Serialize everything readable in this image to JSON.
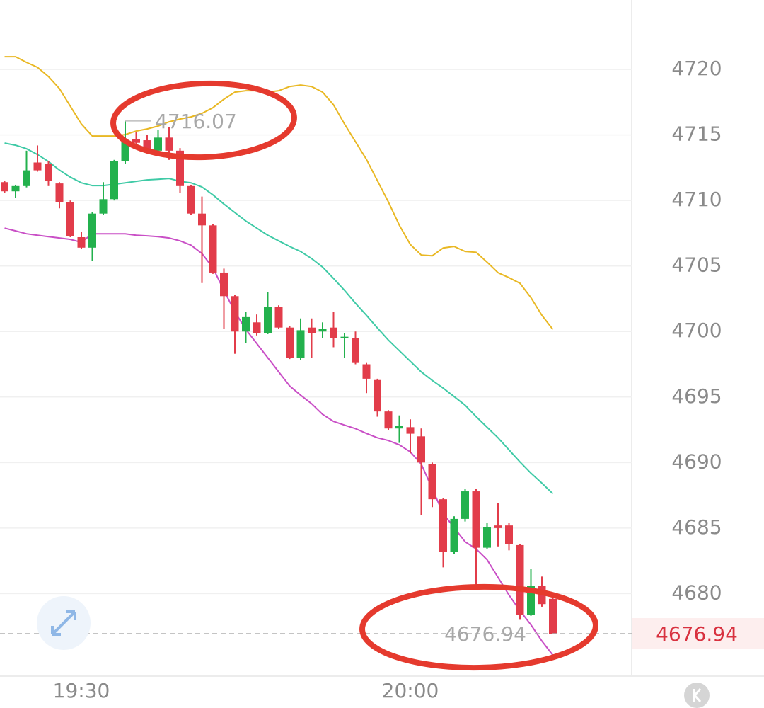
{
  "chart_data": {
    "type": "candlestick",
    "categories": [
      null,
      null,
      null,
      null,
      null,
      null,
      null,
      "19:30",
      null,
      null,
      null,
      null,
      null,
      null,
      null,
      null,
      null,
      null,
      null,
      null,
      null,
      null,
      null,
      null,
      null,
      null,
      null,
      null,
      null,
      null,
      null,
      null,
      null,
      null,
      null,
      null,
      null,
      "20:00",
      null,
      null,
      null,
      null,
      null,
      null,
      null,
      null,
      null,
      null,
      null,
      null,
      null
    ],
    "open": [
      4711.4,
      4710.7,
      4711.1,
      4712.9,
      4712.8,
      4711.3,
      4709.9,
      4707.2,
      4706.4,
      4709.0,
      4710.1,
      4713.0,
      4714.7,
      4714.6,
      4713.8,
      4714.8,
      4713.8,
      4711.1,
      4709.0,
      4708.1,
      4704.5,
      4702.7,
      4700.0,
      4700.7,
      4699.9,
      4701.9,
      4700.3,
      4698.0,
      4700.3,
      4700.0,
      4700.3,
      4699.5,
      4699.5,
      4697.5,
      4696.3,
      4693.9,
      4692.6,
      4692.7,
      4692.0,
      4689.9,
      4687.2,
      4683.2,
      4685.7,
      4687.8,
      4683.5,
      4685.2,
      4685.2,
      4683.7,
      4678.4,
      4680.6,
      4679.6
    ],
    "high": [
      4711.5,
      4711.2,
      4713.8,
      4714.2,
      4713.0,
      4711.4,
      4710.0,
      4707.6,
      4709.1,
      4711.4,
      4713.1,
      4716.07,
      4715.2,
      4715.0,
      4715.4,
      4715.6,
      4714.0,
      4711.2,
      4710.3,
      4708.2,
      4704.8,
      4702.8,
      4701.5,
      4701.3,
      4703.0,
      4702.0,
      4700.4,
      4701.0,
      4701.0,
      4700.7,
      4701.5,
      4699.9,
      4700.0,
      4697.6,
      4696.4,
      4694.0,
      4693.6,
      4693.3,
      4692.6,
      4690.0,
      4687.3,
      4685.9,
      4688.0,
      4688.0,
      4685.4,
      4686.9,
      4685.4,
      4683.8,
      4681.9,
      4681.3,
      4679.7
    ],
    "low": [
      4710.6,
      4710.2,
      4711.0,
      4712.2,
      4711.1,
      4709.4,
      4707.2,
      4706.3,
      4705.4,
      4708.9,
      4710.0,
      4712.8,
      4714.2,
      4713.7,
      4713.7,
      4713.1,
      4710.6,
      4708.9,
      4703.7,
      4704.4,
      4700.2,
      4698.3,
      4699.1,
      4699.7,
      4699.8,
      4700.2,
      4697.9,
      4697.8,
      4698.0,
      4699.5,
      4698.8,
      4698.0,
      4697.5,
      4695.3,
      4693.5,
      4692.5,
      4691.5,
      4690.7,
      4686.0,
      4686.6,
      4682.0,
      4683.0,
      4685.5,
      4680.7,
      4683.4,
      4683.6,
      4683.3,
      4678.0,
      4678.3,
      4679.0,
      4676.9
    ],
    "close": [
      4710.7,
      4711.1,
      4712.3,
      4712.3,
      4711.5,
      4709.9,
      4707.3,
      4706.4,
      4709.0,
      4710.1,
      4713.0,
      4714.5,
      4714.4,
      4713.9,
      4714.8,
      4713.8,
      4711.1,
      4709.0,
      4708.1,
      4704.5,
      4702.7,
      4700.0,
      4701.1,
      4699.9,
      4701.9,
      4700.3,
      4698.0,
      4700.1,
      4699.9,
      4700.2,
      4699.5,
      4699.6,
      4697.6,
      4696.4,
      4693.9,
      4692.6,
      4692.8,
      4692.2,
      4690.0,
      4687.2,
      4683.2,
      4685.7,
      4687.8,
      4683.5,
      4685.1,
      4685.0,
      4683.8,
      4678.4,
      4680.6,
      4679.2,
      4676.94
    ],
    "up_color": "#23b14d",
    "down_color": "#e23c4a",
    "series": [
      {
        "color": "#e9b824",
        "values": [
          4720.97,
          4720.97,
          4720.54,
          4720.16,
          4719.46,
          4718.54,
          4717.19,
          4715.84,
          4714.92,
          4714.92,
          4714.92,
          4715.03,
          4715.3,
          4715.46,
          4715.68,
          4716.0,
          4716.22,
          4716.38,
          4716.65,
          4717.08,
          4717.73,
          4718.27,
          4718.38,
          4718.38,
          4718.27,
          4718.38,
          4718.7,
          4718.81,
          4718.7,
          4718.27,
          4717.3,
          4715.84,
          4714.49,
          4713.14,
          4711.51,
          4709.89,
          4708.11,
          4706.65,
          4705.84,
          4705.78,
          4706.38,
          4706.49,
          4706.11,
          4706.05,
          4705.3,
          4704.49,
          4704.11,
          4703.68,
          4702.59,
          4701.24,
          4700.16
        ]
      },
      {
        "color": "#3fcaa6",
        "values": [
          4714.38,
          4714.22,
          4713.95,
          4713.51,
          4712.97,
          4712.32,
          4711.78,
          4711.35,
          4711.14,
          4711.14,
          4711.24,
          4711.35,
          4711.46,
          4711.57,
          4711.62,
          4711.68,
          4711.46,
          4711.35,
          4711.03,
          4710.43,
          4709.73,
          4709.08,
          4708.43,
          4707.89,
          4707.35,
          4706.92,
          4706.49,
          4706.11,
          4705.57,
          4704.92,
          4704.05,
          4703.14,
          4702.16,
          4701.24,
          4700.27,
          4699.35,
          4698.54,
          4697.73,
          4696.92,
          4696.27,
          4695.68,
          4695.03,
          4694.38,
          4693.51,
          4692.7,
          4691.89,
          4690.97,
          4690.05,
          4689.19,
          4688.43,
          4687.62
        ]
      },
      {
        "color": "#c94fc6",
        "values": [
          4707.89,
          4707.68,
          4707.46,
          4707.35,
          4707.24,
          4707.14,
          4707.03,
          4706.81,
          4707.46,
          4707.46,
          4707.46,
          4707.46,
          4707.35,
          4707.3,
          4707.24,
          4707.14,
          4706.92,
          4706.59,
          4705.95,
          4704.86,
          4703.14,
          4701.51,
          4700.16,
          4699.08,
          4698.0,
          4696.92,
          4695.84,
          4695.14,
          4694.49,
          4693.68,
          4693.14,
          4692.86,
          4692.59,
          4692.22,
          4691.89,
          4691.68,
          4691.35,
          4690.81,
          4689.89,
          4688.0,
          4686.11,
          4685.03,
          4683.95,
          4683.41,
          4682.59,
          4681.24,
          4679.89,
          4678.7,
          4677.62,
          4676.38,
          4675.3
        ]
      }
    ],
    "ylim": [
      4673.7,
      4725.3
    ],
    "yticks": [
      4680,
      4685,
      4690,
      4695,
      4700,
      4705,
      4710,
      4715,
      4720
    ],
    "grid": true,
    "max_label": 4716.07,
    "last_price": 4676.94
  }
}
